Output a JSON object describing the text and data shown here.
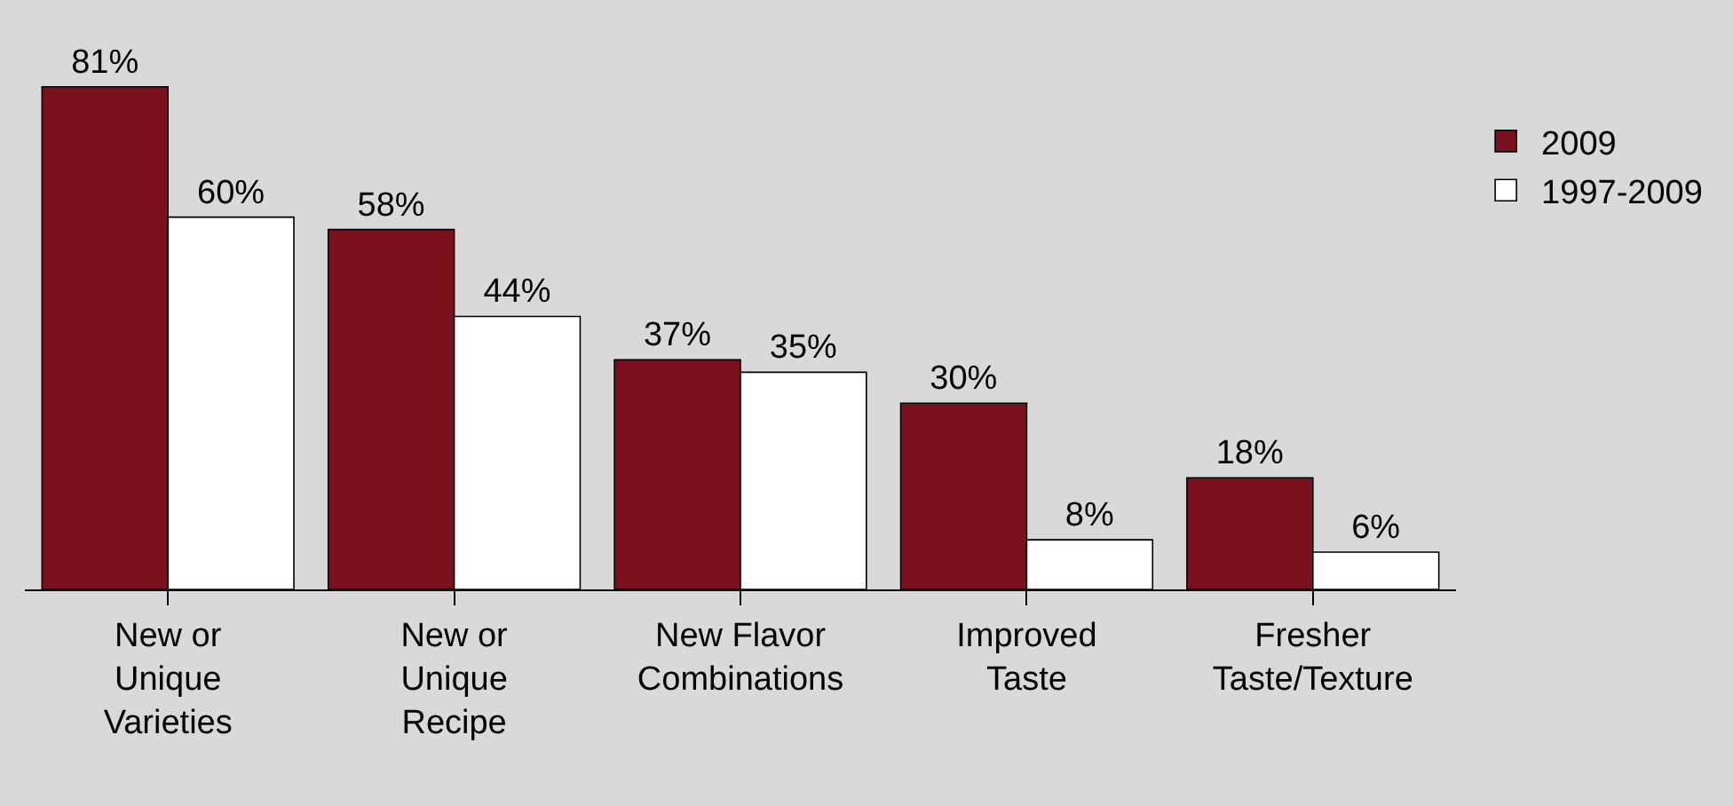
{
  "chart_data": {
    "type": "bar",
    "categories": [
      "New or\nUnique\nVarieties",
      "New or\nUnique\nRecipe",
      "New Flavor\nCombinations",
      "Improved\nTaste",
      "Fresher\nTaste/Texture"
    ],
    "series": [
      {
        "name": "2009",
        "color": "#7b111d",
        "values": [
          81,
          58,
          37,
          30,
          18
        ],
        "value_labels": [
          "81%",
          "58%",
          "37%",
          "30%",
          "18%"
        ]
      },
      {
        "name": "1997-2009",
        "color": "#ffffff",
        "values": [
          60,
          44,
          35,
          8,
          6
        ],
        "value_labels": [
          "60%",
          "44%",
          "35%",
          "8%",
          "6%"
        ]
      }
    ],
    "tick_labels": "x",
    "grid": false,
    "legend": "right"
  }
}
